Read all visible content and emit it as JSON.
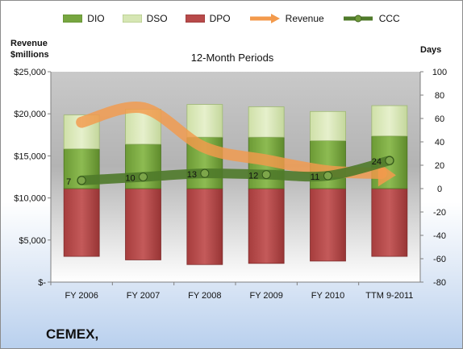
{
  "company": "CEMEX,",
  "chart_data": {
    "type": "bar",
    "title": "12-Month Periods",
    "y_left_title": [
      "Revenue",
      "$millions"
    ],
    "y_right_title": "Days",
    "categories": [
      "FY 2006",
      "FY 2007",
      "FY 2008",
      "FY 2009",
      "FY 2010",
      "TTM 9-2011"
    ],
    "y_left_ticks": [
      "$25,000",
      "$20,000",
      "$15,000",
      "$10,000",
      "$5,000",
      "$-"
    ],
    "y_left_range": [
      0,
      25000
    ],
    "y_right_ticks": [
      "100",
      "80",
      "60",
      "40",
      "20",
      "0",
      "-20",
      "-40",
      "-60",
      "-80"
    ],
    "y_right_range": [
      -80,
      100
    ],
    "legend_position": "top",
    "series": [
      {
        "name": "DIO",
        "kind": "stacked-bar",
        "color": "#77a640",
        "values": [
          34,
          38,
          44,
          44,
          41,
          45
        ]
      },
      {
        "name": "DSO",
        "kind": "stacked-bar",
        "color": "#d6e6b4",
        "values": [
          29,
          30,
          28,
          26,
          25,
          26
        ]
      },
      {
        "name": "DPO",
        "kind": "stacked-bar-negative",
        "color": "#b84a4a",
        "values": [
          -58,
          -61,
          -65,
          -64,
          -62,
          -58
        ]
      },
      {
        "name": "Revenue",
        "kind": "line",
        "axis": "left",
        "color": "#f39a4c",
        "values": [
          19000,
          20700,
          16000,
          14500,
          13200,
          12900
        ]
      },
      {
        "name": "CCC",
        "kind": "line",
        "axis": "right",
        "color": "#4f7a2a",
        "values": [
          7,
          10,
          13,
          12,
          11,
          24
        ],
        "labels": [
          "7",
          "10",
          "13",
          "12",
          "11",
          "24"
        ]
      }
    ],
    "grid": false,
    "plot_background": "gradient gray"
  }
}
